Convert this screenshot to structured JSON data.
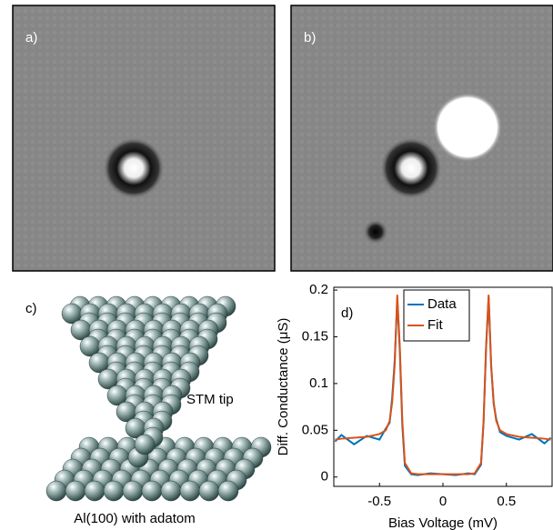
{
  "panels": {
    "a": "a)",
    "b": "b)",
    "c": "c)",
    "d": "d)"
  },
  "diagram": {
    "tip_label": "STM tip",
    "surface_label": "Al(100) with adatom"
  },
  "chart_data": {
    "type": "line",
    "xlabel": "Bias Voltage (mV)",
    "ylabel": "Diff. Conductance (μS)",
    "x": [
      -0.85,
      -0.8,
      -0.7,
      -0.6,
      -0.5,
      -0.45,
      -0.42,
      -0.4,
      -0.38,
      -0.36,
      -0.34,
      -0.32,
      -0.3,
      -0.25,
      -0.2,
      -0.1,
      0,
      0.1,
      0.2,
      0.25,
      0.3,
      0.32,
      0.34,
      0.36,
      0.38,
      0.4,
      0.42,
      0.45,
      0.5,
      0.6,
      0.7,
      0.8,
      0.85
    ],
    "series": [
      {
        "name": "Data",
        "color": "#0072bd",
        "values": [
          0.038,
          0.045,
          0.035,
          0.044,
          0.04,
          0.052,
          0.058,
          0.085,
          0.125,
          0.19,
          0.135,
          0.055,
          0.012,
          0.003,
          0.002,
          0.004,
          0.003,
          0.002,
          0.004,
          0.003,
          0.013,
          0.058,
          0.138,
          0.192,
          0.118,
          0.078,
          0.062,
          0.048,
          0.044,
          0.04,
          0.046,
          0.036,
          0.042
        ]
      },
      {
        "name": "Fit",
        "color": "#d95319",
        "values": [
          0.04,
          0.041,
          0.042,
          0.043,
          0.046,
          0.05,
          0.06,
          0.08,
          0.12,
          0.195,
          0.14,
          0.06,
          0.015,
          0.004,
          0.003,
          0.003,
          0.003,
          0.003,
          0.003,
          0.004,
          0.015,
          0.06,
          0.14,
          0.195,
          0.12,
          0.08,
          0.06,
          0.05,
          0.046,
          0.043,
          0.042,
          0.041,
          0.04
        ]
      }
    ],
    "xlim": [
      -0.86,
      0.86
    ],
    "ylim": [
      -0.01,
      0.203
    ],
    "xticks": [
      -0.5,
      0,
      0.5
    ],
    "yticks": [
      0,
      0.05,
      0.1,
      0.15,
      0.2
    ],
    "legend": "upper-left"
  }
}
